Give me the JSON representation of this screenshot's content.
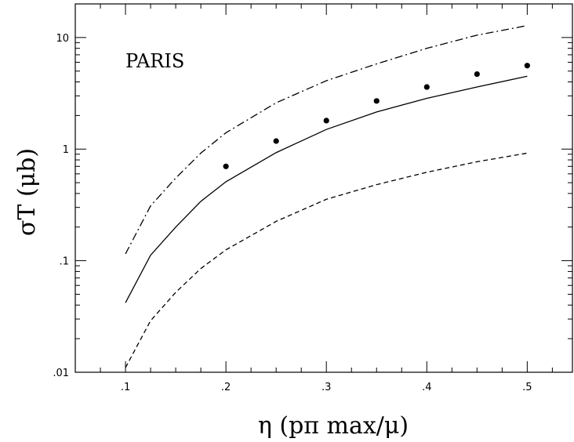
{
  "chart_data": {
    "type": "line",
    "annotation": "PARIS",
    "xlabel": "η  (pπ max/μ)",
    "ylabel": "σT  (μb)",
    "xlim": [
      0.05,
      0.545
    ],
    "ylim": [
      0.01,
      20
    ],
    "yscale": "log",
    "xticks": [
      0.1,
      0.2,
      0.3,
      0.4,
      0.5
    ],
    "xticklabels": [
      ".1",
      ".2",
      ".3",
      ".4",
      ".5"
    ],
    "yticks": [
      0.01,
      0.1,
      1,
      10
    ],
    "yticklabels": [
      ".01",
      ".1",
      "1",
      "10"
    ],
    "grid": false,
    "series": [
      {
        "style": "dashdot",
        "x": [
          0.1,
          0.125,
          0.15,
          0.175,
          0.2,
          0.25,
          0.3,
          0.35,
          0.4,
          0.45,
          0.5
        ],
        "y": [
          0.115,
          0.31,
          0.55,
          0.92,
          1.4,
          2.6,
          4.1,
          5.8,
          8.0,
          10.5,
          12.8
        ]
      },
      {
        "style": "solid",
        "x": [
          0.1,
          0.125,
          0.15,
          0.175,
          0.2,
          0.25,
          0.3,
          0.35,
          0.4,
          0.45,
          0.5
        ],
        "y": [
          0.042,
          0.112,
          0.2,
          0.34,
          0.51,
          0.93,
          1.5,
          2.15,
          2.85,
          3.6,
          4.5
        ]
      },
      {
        "style": "dashed",
        "x": [
          0.1,
          0.125,
          0.15,
          0.175,
          0.2,
          0.25,
          0.3,
          0.35,
          0.4,
          0.45,
          0.5
        ],
        "y": [
          0.011,
          0.029,
          0.052,
          0.085,
          0.125,
          0.225,
          0.355,
          0.48,
          0.62,
          0.77,
          0.92
        ]
      },
      {
        "style": "points",
        "x": [
          0.2,
          0.25,
          0.3,
          0.35,
          0.4,
          0.45,
          0.5
        ],
        "y": [
          0.7,
          1.18,
          1.8,
          2.7,
          3.6,
          4.7,
          5.6
        ]
      }
    ]
  }
}
